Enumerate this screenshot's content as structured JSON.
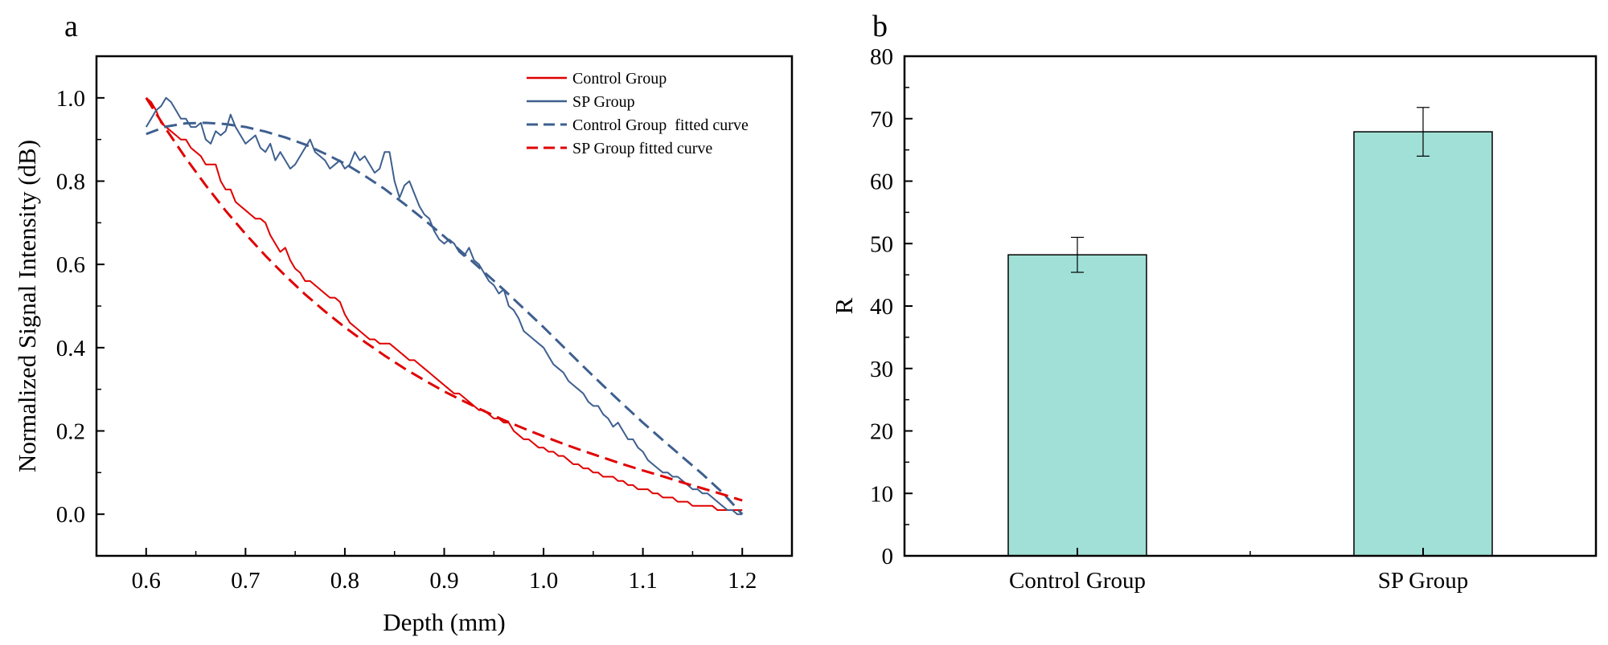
{
  "panels": {
    "a": "a",
    "b": "b"
  },
  "chart_data": [
    {
      "type": "line",
      "panel": "a",
      "title": "",
      "xlabel": "Depth (mm)",
      "ylabel": "Normalized Signal Intensity (dB)",
      "xlim": [
        0.55,
        1.25
      ],
      "ylim": [
        -0.1,
        1.1
      ],
      "xticks": [
        "0.6",
        "0.7",
        "0.8",
        "0.9",
        "1.0",
        "1.1",
        "1.2"
      ],
      "yticks": [
        "0.0",
        "0.2",
        "0.4",
        "0.6",
        "0.8",
        "1.0"
      ],
      "legend_position": "top-right",
      "series": [
        {
          "name": "Control Group",
          "style": "solid",
          "color": "#e00000",
          "x": [
            0.6,
            0.605,
            0.61,
            0.615,
            0.62,
            0.625,
            0.63,
            0.635,
            0.64,
            0.645,
            0.65,
            0.655,
            0.66,
            0.665,
            0.67,
            0.675,
            0.68,
            0.685,
            0.69,
            0.695,
            0.7,
            0.705,
            0.71,
            0.715,
            0.72,
            0.725,
            0.73,
            0.735,
            0.74,
            0.745,
            0.75,
            0.755,
            0.76,
            0.765,
            0.77,
            0.775,
            0.78,
            0.785,
            0.79,
            0.795,
            0.8,
            0.805,
            0.81,
            0.815,
            0.82,
            0.825,
            0.83,
            0.835,
            0.84,
            0.845,
            0.85,
            0.855,
            0.86,
            0.865,
            0.87,
            0.875,
            0.88,
            0.885,
            0.89,
            0.895,
            0.9,
            0.905,
            0.91,
            0.915,
            0.92,
            0.925,
            0.93,
            0.935,
            0.94,
            0.945,
            0.95,
            0.955,
            0.96,
            0.965,
            0.97,
            0.975,
            0.98,
            0.985,
            0.99,
            0.995,
            1.0,
            1.005,
            1.01,
            1.015,
            1.02,
            1.025,
            1.03,
            1.035,
            1.04,
            1.045,
            1.05,
            1.055,
            1.06,
            1.065,
            1.07,
            1.075,
            1.08,
            1.085,
            1.09,
            1.095,
            1.1,
            1.105,
            1.11,
            1.115,
            1.12,
            1.125,
            1.13,
            1.135,
            1.14,
            1.145,
            1.15,
            1.155,
            1.16,
            1.165,
            1.17,
            1.175,
            1.18,
            1.185,
            1.19,
            1.195,
            1.2
          ],
          "y": [
            1.0,
            0.99,
            0.97,
            0.94,
            0.93,
            0.92,
            0.91,
            0.9,
            0.9,
            0.88,
            0.87,
            0.86,
            0.84,
            0.84,
            0.84,
            0.8,
            0.78,
            0.78,
            0.75,
            0.74,
            0.73,
            0.72,
            0.71,
            0.71,
            0.7,
            0.67,
            0.65,
            0.63,
            0.64,
            0.61,
            0.59,
            0.58,
            0.56,
            0.56,
            0.55,
            0.54,
            0.53,
            0.52,
            0.52,
            0.51,
            0.48,
            0.46,
            0.45,
            0.44,
            0.43,
            0.42,
            0.42,
            0.41,
            0.41,
            0.41,
            0.4,
            0.39,
            0.38,
            0.37,
            0.37,
            0.36,
            0.35,
            0.34,
            0.33,
            0.32,
            0.31,
            0.3,
            0.29,
            0.29,
            0.28,
            0.27,
            0.26,
            0.25,
            0.25,
            0.24,
            0.23,
            0.23,
            0.22,
            0.22,
            0.2,
            0.19,
            0.18,
            0.18,
            0.17,
            0.16,
            0.16,
            0.15,
            0.15,
            0.14,
            0.14,
            0.13,
            0.12,
            0.12,
            0.11,
            0.11,
            0.1,
            0.1,
            0.09,
            0.09,
            0.09,
            0.08,
            0.08,
            0.07,
            0.07,
            0.06,
            0.06,
            0.06,
            0.05,
            0.05,
            0.04,
            0.04,
            0.04,
            0.03,
            0.03,
            0.03,
            0.02,
            0.02,
            0.02,
            0.02,
            0.02,
            0.01,
            0.01,
            0.01,
            0.01,
            0.01,
            0.01
          ]
        },
        {
          "name": "SP Group",
          "style": "solid",
          "color": "#3e5f8f",
          "x": [
            0.6,
            0.605,
            0.61,
            0.615,
            0.62,
            0.625,
            0.63,
            0.635,
            0.64,
            0.645,
            0.65,
            0.655,
            0.66,
            0.665,
            0.67,
            0.675,
            0.68,
            0.685,
            0.69,
            0.695,
            0.7,
            0.705,
            0.71,
            0.715,
            0.72,
            0.725,
            0.73,
            0.735,
            0.74,
            0.745,
            0.75,
            0.755,
            0.76,
            0.765,
            0.77,
            0.775,
            0.78,
            0.785,
            0.79,
            0.795,
            0.8,
            0.805,
            0.81,
            0.815,
            0.82,
            0.825,
            0.83,
            0.835,
            0.84,
            0.845,
            0.85,
            0.855,
            0.86,
            0.865,
            0.87,
            0.875,
            0.88,
            0.885,
            0.89,
            0.895,
            0.9,
            0.905,
            0.91,
            0.915,
            0.92,
            0.925,
            0.93,
            0.935,
            0.94,
            0.945,
            0.95,
            0.955,
            0.96,
            0.965,
            0.97,
            0.975,
            0.98,
            0.985,
            0.99,
            0.995,
            1.0,
            1.005,
            1.01,
            1.015,
            1.02,
            1.025,
            1.03,
            1.035,
            1.04,
            1.045,
            1.05,
            1.055,
            1.06,
            1.065,
            1.07,
            1.075,
            1.08,
            1.085,
            1.09,
            1.095,
            1.1,
            1.105,
            1.11,
            1.115,
            1.12,
            1.125,
            1.13,
            1.135,
            1.14,
            1.145,
            1.15,
            1.155,
            1.16,
            1.165,
            1.17,
            1.175,
            1.18,
            1.185,
            1.19,
            1.195,
            1.2
          ],
          "y": [
            0.93,
            0.95,
            0.97,
            0.98,
            1.0,
            0.99,
            0.97,
            0.95,
            0.95,
            0.93,
            0.93,
            0.94,
            0.9,
            0.89,
            0.92,
            0.91,
            0.92,
            0.96,
            0.93,
            0.91,
            0.89,
            0.9,
            0.91,
            0.88,
            0.87,
            0.89,
            0.85,
            0.87,
            0.85,
            0.83,
            0.84,
            0.86,
            0.88,
            0.9,
            0.87,
            0.86,
            0.85,
            0.83,
            0.84,
            0.85,
            0.83,
            0.84,
            0.87,
            0.85,
            0.86,
            0.84,
            0.82,
            0.83,
            0.87,
            0.87,
            0.8,
            0.76,
            0.79,
            0.8,
            0.77,
            0.74,
            0.72,
            0.71,
            0.68,
            0.66,
            0.65,
            0.66,
            0.65,
            0.63,
            0.62,
            0.64,
            0.61,
            0.6,
            0.58,
            0.56,
            0.55,
            0.53,
            0.54,
            0.5,
            0.49,
            0.47,
            0.44,
            0.43,
            0.42,
            0.41,
            0.4,
            0.38,
            0.36,
            0.35,
            0.34,
            0.32,
            0.31,
            0.3,
            0.29,
            0.27,
            0.26,
            0.26,
            0.24,
            0.23,
            0.21,
            0.22,
            0.2,
            0.18,
            0.18,
            0.16,
            0.15,
            0.13,
            0.12,
            0.11,
            0.1,
            0.1,
            0.09,
            0.09,
            0.08,
            0.07,
            0.06,
            0.06,
            0.05,
            0.05,
            0.04,
            0.03,
            0.02,
            0.01,
            0.01,
            0.0,
            0.0
          ]
        },
        {
          "name": "Control Group  fitted curve",
          "style": "dashed",
          "color": "#3e5f8f",
          "x": [
            0.6,
            0.62,
            0.64,
            0.66,
            0.68,
            0.7,
            0.72,
            0.74,
            0.76,
            0.78,
            0.8,
            0.82,
            0.84,
            0.86,
            0.88,
            0.9,
            0.92,
            0.94,
            0.96,
            0.98,
            1.0,
            1.02,
            1.04,
            1.06,
            1.08,
            1.1,
            1.12,
            1.14,
            1.16,
            1.18,
            1.2
          ],
          "y": [
            0.913,
            0.931,
            0.939,
            0.94,
            0.937,
            0.93,
            0.919,
            0.905,
            0.888,
            0.866,
            0.842,
            0.813,
            0.781,
            0.745,
            0.707,
            0.667,
            0.625,
            0.582,
            0.539,
            0.494,
            0.449,
            0.402,
            0.355,
            0.309,
            0.264,
            0.22,
            0.178,
            0.137,
            0.096,
            0.052,
            0.0
          ]
        },
        {
          "name": "SP Group fitted curve",
          "style": "dashed",
          "color": "#e00000",
          "x": [
            0.6,
            0.62,
            0.64,
            0.66,
            0.68,
            0.7,
            0.72,
            0.74,
            0.76,
            0.78,
            0.8,
            0.82,
            0.84,
            0.86,
            0.88,
            0.9,
            0.92,
            0.94,
            0.96,
            0.98,
            1.0,
            1.02,
            1.04,
            1.06,
            1.08,
            1.1,
            1.12,
            1.14,
            1.16,
            1.18,
            1.2
          ],
          "y": [
            1.0,
            0.925,
            0.855,
            0.79,
            0.729,
            0.673,
            0.621,
            0.573,
            0.528,
            0.487,
            0.449,
            0.414,
            0.381,
            0.35,
            0.322,
            0.295,
            0.271,
            0.248,
            0.226,
            0.206,
            0.187,
            0.169,
            0.152,
            0.136,
            0.12,
            0.105,
            0.091,
            0.076,
            0.062,
            0.048,
            0.033
          ]
        }
      ]
    },
    {
      "type": "bar",
      "panel": "b",
      "title": "",
      "xlabel": "",
      "ylabel": "R",
      "ylim": [
        0,
        80
      ],
      "yticks": [
        "0",
        "10",
        "20",
        "30",
        "40",
        "50",
        "60",
        "70",
        "80"
      ],
      "categories": [
        "Control Group",
        "SP Group"
      ],
      "values": [
        48.2,
        67.9
      ],
      "errors": [
        2.8,
        3.9
      ],
      "bar_color": "#a0e0d6",
      "edge_color": "#000000"
    }
  ]
}
